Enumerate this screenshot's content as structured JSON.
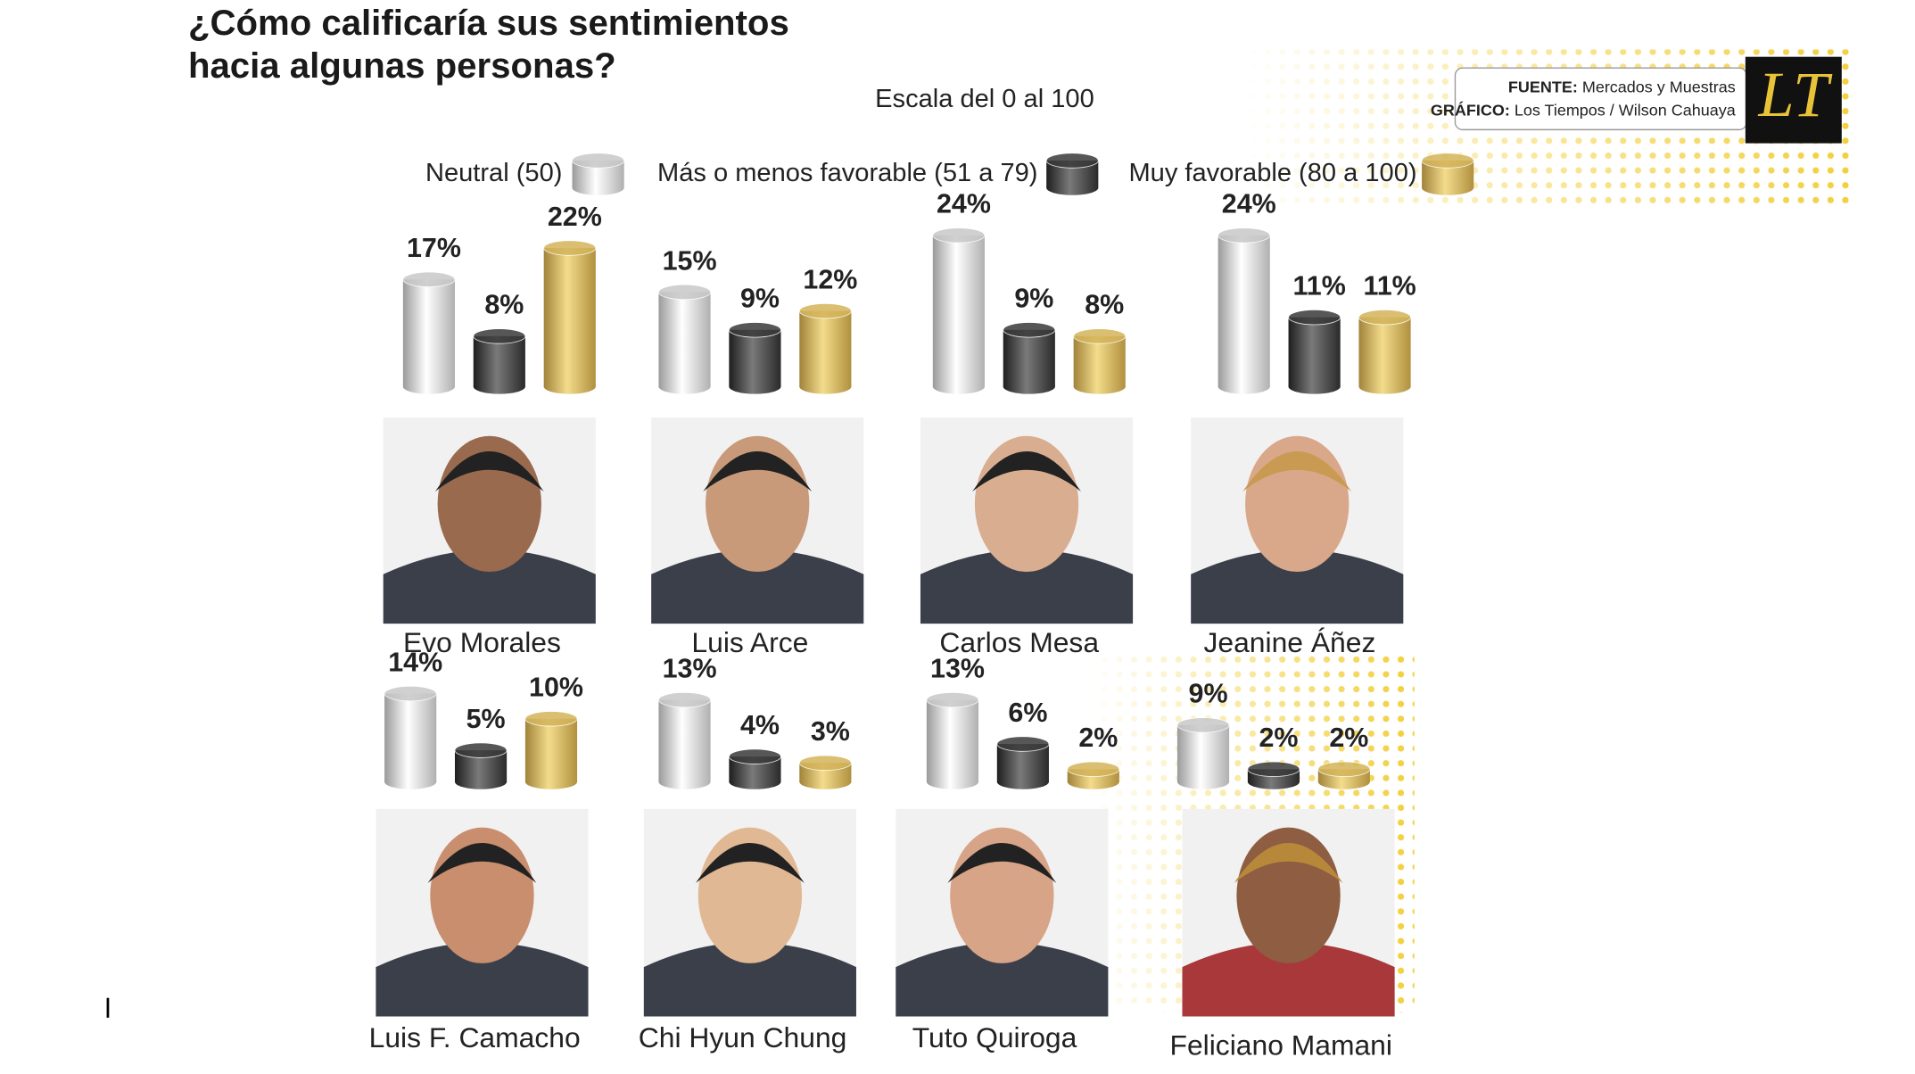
{
  "chart_data": {
    "type": "bar",
    "title": "¿Cómo calificaría sus sentimientos hacia algunas personas?",
    "subtitle": "Escala del 0 al 100",
    "source_label": "FUENTE:",
    "source": "Mercados y Muestras",
    "credit_label": "GRÁFICO:",
    "credit": "Los Tiempos / Wilson Cahuaya",
    "logo": "LT",
    "categories": [
      "Evo Morales",
      "Luis Arce",
      "Carlos Mesa",
      "Jeanine Áñez",
      "Luis F. Camacho",
      "Chi Hyun Chung",
      "Tuto Quiroga",
      "Feliciano Mamani"
    ],
    "series": [
      {
        "name": "Neutral (50)",
        "color": "#c8c8c8",
        "values": [
          17,
          15,
          24,
          24,
          14,
          13,
          13,
          9
        ],
        "value_labels": [
          "17%",
          "15%",
          "24%",
          "24%",
          "14%",
          "13%",
          "13%",
          "9%"
        ]
      },
      {
        "name": "Más o menos favorable (51 a 79)",
        "color": "#3a3a3a",
        "values": [
          8,
          9,
          9,
          11,
          5,
          4,
          6,
          2
        ],
        "value_labels": [
          "8%",
          "9%",
          "9%",
          "11%",
          "5%",
          "4%",
          "6%",
          "2%"
        ]
      },
      {
        "name": "Muy favorable (80 a 100)",
        "color": "#d4b45a",
        "values": [
          22,
          12,
          8,
          11,
          10,
          3,
          2,
          2
        ],
        "value_labels": [
          "22%",
          "12%",
          "8%",
          "11%",
          "10%",
          "3%",
          "2%",
          "2%"
        ]
      }
    ]
  }
}
